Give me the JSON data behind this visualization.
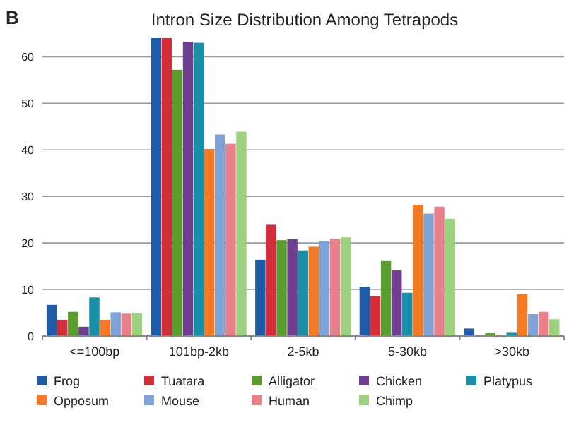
{
  "chart_data": {
    "type": "bar",
    "title": "Intron Size Distribution Among Tetrapods",
    "annotations": [
      "B"
    ],
    "categories": [
      "<=100bp",
      "101bp-2kb",
      "2-5kb",
      "5-30kb",
      ">30kb"
    ],
    "series": [
      {
        "name": "Frog",
        "color": "#1f5ba6",
        "values": [
          6.7,
          64,
          16.4,
          10.6,
          1.6
        ]
      },
      {
        "name": "Tuatara",
        "color": "#d42e3a",
        "values": [
          3.5,
          64,
          23.9,
          8.5,
          0
        ]
      },
      {
        "name": "Alligator",
        "color": "#5a9e2f",
        "values": [
          5.2,
          57.2,
          20.6,
          16.1,
          0.6
        ]
      },
      {
        "name": "Chicken",
        "color": "#6e3f8f",
        "values": [
          2,
          63.2,
          20.8,
          14.1,
          0
        ]
      },
      {
        "name": "Platypus",
        "color": "#1a8fa8",
        "values": [
          8.3,
          63,
          18.4,
          9.3,
          0.7
        ]
      },
      {
        "name": "Opposum",
        "color": "#f57a24",
        "values": [
          3.5,
          40.2,
          19.2,
          28.2,
          9
        ]
      },
      {
        "name": "Mouse",
        "color": "#7fa3d6",
        "values": [
          5.1,
          43.3,
          20.4,
          26.3,
          4.7
        ]
      },
      {
        "name": "Human",
        "color": "#e88089",
        "values": [
          4.8,
          41.3,
          20.9,
          27.8,
          5.2
        ]
      },
      {
        "name": "Chimp",
        "color": "#9bd17f",
        "values": [
          4.9,
          43.9,
          21.2,
          25.2,
          3.6
        ]
      }
    ],
    "ylim": [
      0,
      64
    ],
    "yticks": [
      0,
      10,
      20,
      30,
      40,
      50,
      60
    ],
    "grid": "y",
    "legend": "bottom"
  }
}
